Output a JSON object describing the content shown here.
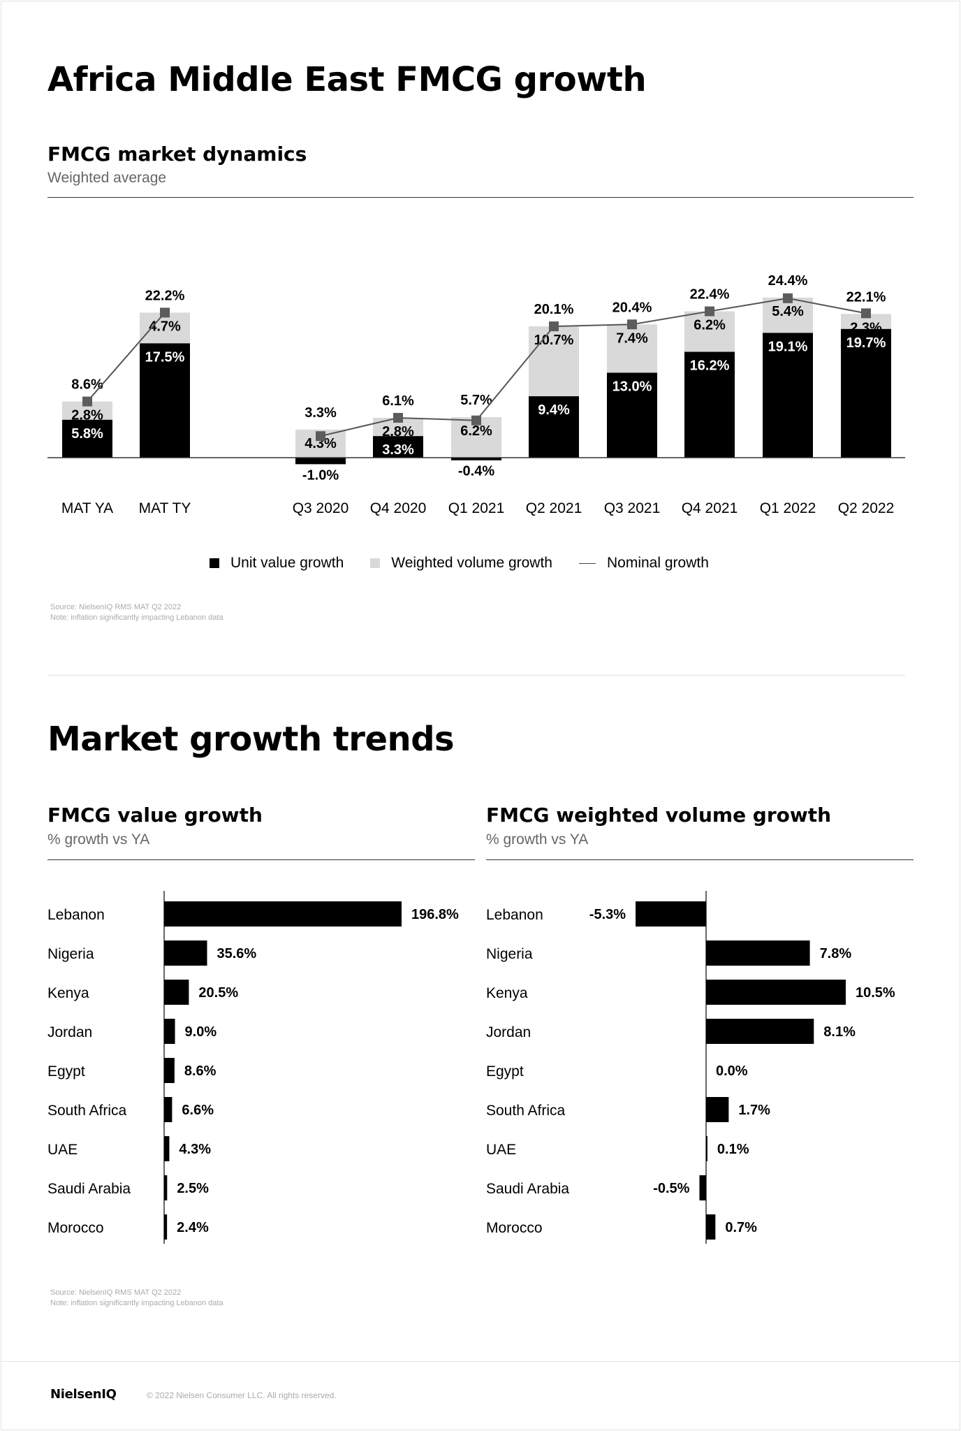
{
  "page": {
    "title": "Africa Middle East FMCG growth",
    "section2_title": "Market growth trends",
    "source_note": "Source: NielsenIQ RMS MAT Q2 2022",
    "inflation_note": "Note:  inflation significantly impacting Lebanon data",
    "logo": "NielsenIQ",
    "copyright": "© 2022 Nielsen Consumer LLC. All rights reserved."
  },
  "chart_data": [
    {
      "type": "bar",
      "stacked": true,
      "title": "FMCG market dynamics",
      "subtitle": "Weighted average",
      "categories": [
        "MAT YA",
        "MAT TY",
        "Q3 2020",
        "Q4 2020",
        "Q1 2021",
        "Q2 2021",
        "Q3 2021",
        "Q4 2021",
        "Q1 2022",
        "Q2 2022"
      ],
      "series": [
        {
          "name": "Unit value growth",
          "color": "#000000",
          "values": [
            5.8,
            17.5,
            -1.0,
            3.3,
            -0.4,
            9.4,
            13.0,
            16.2,
            19.1,
            19.7
          ]
        },
        {
          "name": "Weighted volume growth",
          "color": "#d9d9d9",
          "values": [
            2.8,
            4.7,
            4.3,
            2.8,
            6.2,
            10.7,
            7.4,
            6.2,
            5.4,
            2.3
          ]
        },
        {
          "name": "Nominal growth",
          "type": "line",
          "color": "#555555",
          "values": [
            8.6,
            22.2,
            3.3,
            6.1,
            5.7,
            20.1,
            20.4,
            22.4,
            24.4,
            22.1
          ]
        }
      ],
      "legend": "bottom-center",
      "grid": false
    },
    {
      "type": "bar",
      "orientation": "horizontal",
      "title": "FMCG value growth",
      "subtitle": "% growth vs YA",
      "categories": [
        "Lebanon",
        "Nigeria",
        "Kenya",
        "Jordan",
        "Egypt",
        "South Africa",
        "UAE",
        "Saudi Arabia",
        "Morocco"
      ],
      "values": [
        196.8,
        35.6,
        20.5,
        9.0,
        8.6,
        6.6,
        4.3,
        2.5,
        2.4
      ],
      "labels": [
        "196.8%",
        "35.6%",
        "20.5%",
        "9.0%",
        "8.6%",
        "6.6%",
        "4.3%",
        "2.5%",
        "2.4%"
      ],
      "xlim": [
        0,
        196.8
      ]
    },
    {
      "type": "bar",
      "orientation": "horizontal",
      "title": "FMCG weighted volume growth",
      "subtitle": "% growth vs YA",
      "categories": [
        "Lebanon",
        "Nigeria",
        "Kenya",
        "Jordan",
        "Egypt",
        "South Africa",
        "UAE",
        "Saudi Arabia",
        "Morocco"
      ],
      "values": [
        -5.3,
        7.8,
        10.5,
        8.1,
        0.0,
        1.7,
        0.1,
        -0.5,
        0.7
      ],
      "labels": [
        "-5.3%",
        "7.8%",
        "10.5%",
        "8.1%",
        "0.0%",
        "1.7%",
        "0.1%",
        "-0.5%",
        "0.7%"
      ],
      "xlim": [
        -5.3,
        10.5
      ]
    }
  ]
}
